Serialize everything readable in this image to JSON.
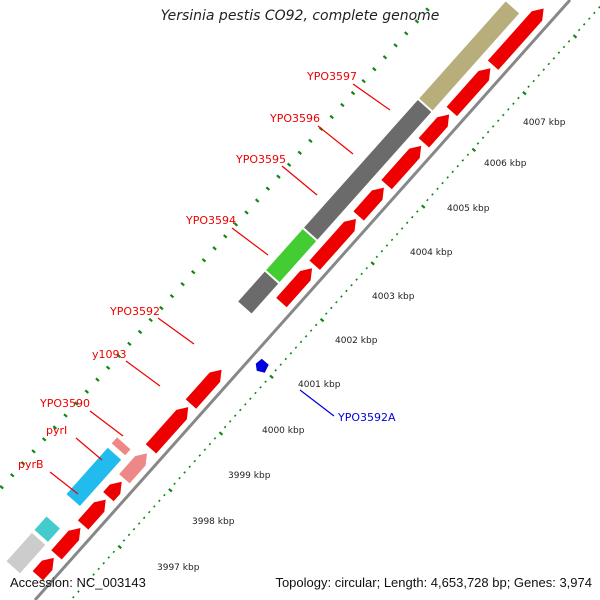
{
  "title": "Yersinia pestis CO92, complete genome",
  "footer": {
    "accession": "Accession: NC_003143",
    "summary": "Topology: circular; Length: 4,653,728 bp; Genes: 3,974"
  },
  "colors": {
    "gene_red": "#ee0000",
    "gene_pink": "#ee8888",
    "gene_blue": "#0000dd",
    "bar_dark_gray": "#6b6b6b",
    "bar_green": "#44cc33",
    "bar_khaki": "#b8ae7c",
    "bar_cyan": "#22bbee",
    "bar_teal": "#44cccc",
    "bar_light_gray": "#cccccc",
    "backbone": "#888888",
    "tick_green": "#118811"
  },
  "kbp_ticks": [
    "3997 kbp",
    "3998 kbp",
    "3999 kbp",
    "4000 kbp",
    "4001 kbp",
    "4002 kbp",
    "4003 kbp",
    "4004 kbp",
    "4005 kbp",
    "4006 kbp",
    "4007 kbp"
  ],
  "gene_labels": [
    {
      "name": "pyrB",
      "color": "red"
    },
    {
      "name": "pyrI",
      "color": "red"
    },
    {
      "name": "YPO3590",
      "color": "red"
    },
    {
      "name": "y1093",
      "color": "red"
    },
    {
      "name": "YPO3592",
      "color": "red"
    },
    {
      "name": "YPO3594",
      "color": "red"
    },
    {
      "name": "YPO3595",
      "color": "red"
    },
    {
      "name": "YPO3596",
      "color": "red"
    },
    {
      "name": "YPO3597",
      "color": "red"
    },
    {
      "name": "YPO3592A",
      "color": "blue"
    }
  ]
}
